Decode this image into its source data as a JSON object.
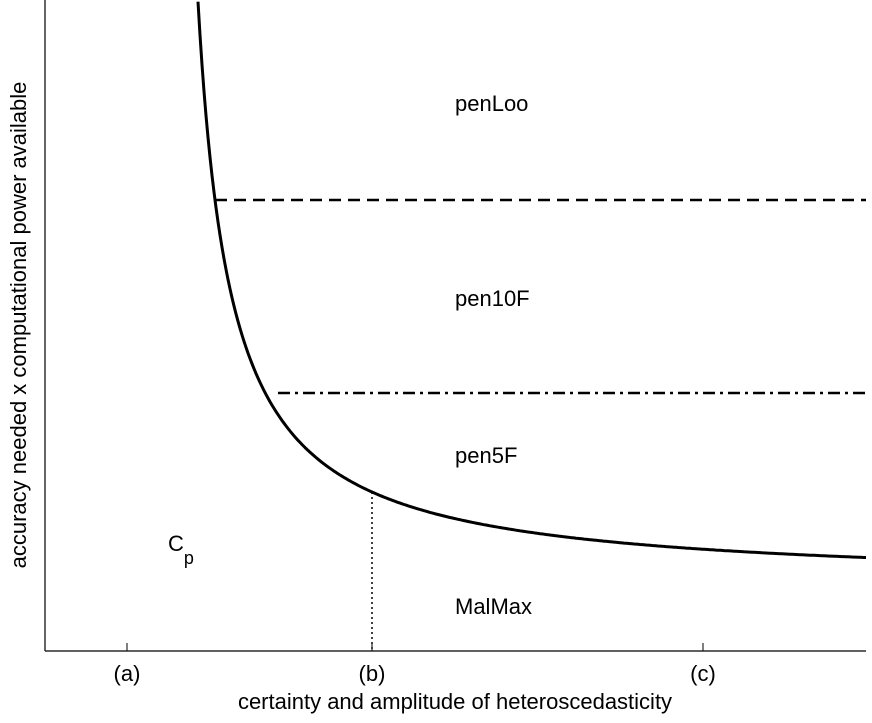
{
  "axes": {
    "x_label": "certainty and amplitude of heteroscedasticity",
    "y_label": "accuracy needed x computational power available",
    "x_ticks": [
      "(a)",
      "(b)",
      "(c)"
    ]
  },
  "regions": [
    {
      "label": "penLoo"
    },
    {
      "label": "pen10F"
    },
    {
      "label": "pen5F"
    },
    {
      "label": "MalMax"
    },
    {
      "label": "C",
      "subscript": "p"
    }
  ]
}
